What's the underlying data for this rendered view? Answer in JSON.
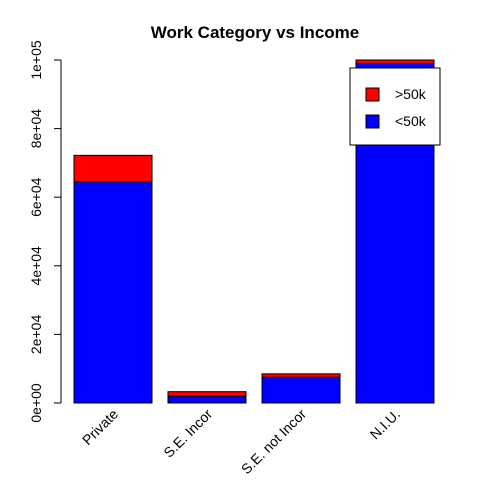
{
  "chart_data": {
    "type": "bar",
    "stacked": true,
    "title": "Work Category vs Income",
    "xlabel": "",
    "ylabel": "",
    "categories": [
      "Private",
      "S.E. Incor",
      "S.E. not Incor",
      "N.I.U."
    ],
    "series": [
      {
        "name": "<50k",
        "color": "#0000ff",
        "values": [
          64500,
          2000,
          7500,
          99000
        ]
      },
      {
        "name": ">50k",
        "color": "#ff0000",
        "values": [
          7700,
          1300,
          1000,
          1000
        ]
      }
    ],
    "ylim": [
      0,
      100000
    ],
    "y_ticks": [
      0,
      20000,
      40000,
      60000,
      80000,
      100000
    ],
    "y_tick_labels": [
      "0e+00",
      "2e+04",
      "4e+04",
      "6e+04",
      "8e+04",
      "1e+05"
    ],
    "grid": false,
    "legend": {
      "placement": "top-right",
      "entries": [
        {
          "label": ">50k",
          "color": "#ff0000"
        },
        {
          "label": "<50k",
          "color": "#0000ff"
        }
      ]
    }
  }
}
